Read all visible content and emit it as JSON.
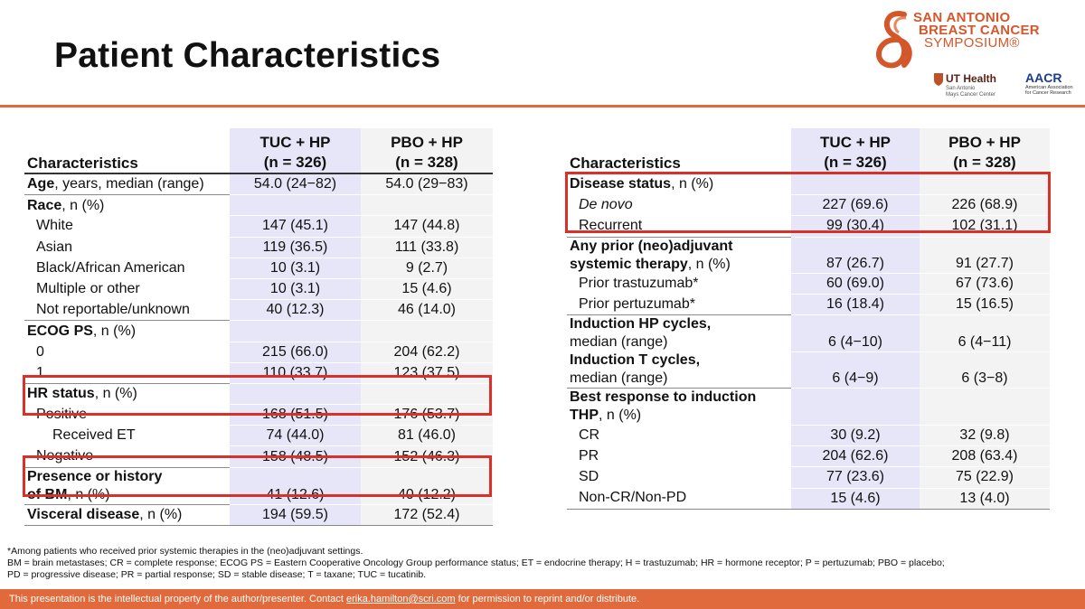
{
  "slide": {
    "title": "Patient Characteristics"
  },
  "logo": {
    "line1": "SAN ANTONIO",
    "line2": "BREAST CANCER",
    "line3": "SYMPOSIUM®",
    "ut_health": "UT Health",
    "ut_sub1": "San Antonio",
    "ut_sub2": "Mays Cancer Center",
    "aacr": "AACR",
    "aacr_sub": "American Association for Cancer Research",
    "color": "#d4572b"
  },
  "table_left": {
    "header": {
      "characteristics": "Characteristics",
      "tuc_arm": "TUC + HP",
      "tuc_n": "(n = 326)",
      "pbo_arm": "PBO + HP",
      "pbo_n": "(n = 328)"
    },
    "rows": [
      {
        "label_bold": "Age",
        "label_rest": ", years, median (range)",
        "tuc": "54.0 (24−82)",
        "pbo": "54.0 (29−83)"
      },
      {
        "label_bold": "Race",
        "label_rest": ", n (%)",
        "tuc": "",
        "pbo": ""
      },
      {
        "label": "White",
        "tuc": "147 (45.1)",
        "pbo": "147 (44.8)"
      },
      {
        "label": "Asian",
        "tuc": "119 (36.5)",
        "pbo": "111 (33.8)"
      },
      {
        "label": "Black/African American",
        "tuc": "10 (3.1)",
        "pbo": "9 (2.7)"
      },
      {
        "label": "Multiple or other",
        "tuc": "10 (3.1)",
        "pbo": "15 (4.6)"
      },
      {
        "label": "Not reportable/unknown",
        "tuc": "40 (12.3)",
        "pbo": "46 (14.0)"
      },
      {
        "label_bold": "ECOG PS",
        "label_rest": ", n (%)",
        "tuc": "",
        "pbo": ""
      },
      {
        "label": "0",
        "tuc": "215 (66.0)",
        "pbo": "204 (62.2)"
      },
      {
        "label": "1",
        "tuc": "110 (33.7)",
        "pbo": "123 (37.5)"
      },
      {
        "label_bold": "HR status",
        "label_rest": ", n (%)",
        "tuc": "",
        "pbo": ""
      },
      {
        "label": "Positive",
        "tuc": "168 (51.5)",
        "pbo": "176 (53.7)"
      },
      {
        "label": "Received ET",
        "tuc": "74 (44.0)",
        "pbo": "81 (46.0)"
      },
      {
        "label": "Negative",
        "tuc": "158 (48.5)",
        "pbo": "152 (46.3)"
      },
      {
        "label_bold_1": "Presence or history",
        "label_bold_2": "of BM",
        "label_rest": ", n (%)",
        "tuc": "41 (12.6)",
        "pbo": "40 (12.2)"
      },
      {
        "label_bold": "Visceral disease",
        "label_rest": ", n (%)",
        "tuc": "194 (59.5)",
        "pbo": "172 (52.4)"
      }
    ]
  },
  "table_right": {
    "header": {
      "characteristics": "Characteristics",
      "tuc_arm": "TUC + HP",
      "tuc_n": "(n = 326)",
      "pbo_arm": "PBO + HP",
      "pbo_n": "(n = 328)"
    },
    "rows": [
      {
        "label_bold": "Disease status",
        "label_rest": ", n (%)",
        "tuc": "",
        "pbo": ""
      },
      {
        "label": "De novo",
        "tuc": "227 (69.6)",
        "pbo": "226 (68.9)"
      },
      {
        "label": "Recurrent",
        "tuc": "99 (30.4)",
        "pbo": "102 (31.1)"
      },
      {
        "label_bold_1": "Any prior (neo)adjuvant",
        "label_bold_2": "systemic therapy",
        "label_rest": ", n (%)",
        "tuc": "87 (26.7)",
        "pbo": "91 (27.7)"
      },
      {
        "label": "Prior trastuzumab*",
        "tuc": "60 (69.0)",
        "pbo": "67 (73.6)"
      },
      {
        "label": "Prior pertuzumab*",
        "tuc": "16 (18.4)",
        "pbo": "15 (16.5)"
      },
      {
        "label_bold": "Induction HP cycles,",
        "label_line2": "median (range)",
        "tuc": "6 (4−10)",
        "pbo": "6 (4−11)"
      },
      {
        "label_bold": "Induction T cycles,",
        "label_line2": "median (range)",
        "tuc": "6 (4−9)",
        "pbo": "6 (3−8)"
      },
      {
        "label_bold_1": "Best response to induction",
        "label_bold_2": "THP",
        "label_rest": ", n (%)",
        "tuc": "",
        "pbo": ""
      },
      {
        "label": "CR",
        "tuc": "30 (9.2)",
        "pbo": "32 (9.8)"
      },
      {
        "label": "PR",
        "tuc": "204 (62.6)",
        "pbo": "208 (63.4)"
      },
      {
        "label": "SD",
        "tuc": "77 (23.6)",
        "pbo": "75 (22.9)"
      },
      {
        "label": "Non-CR/Non-PD",
        "tuc": "15 (4.6)",
        "pbo": "13 (4.0)"
      }
    ]
  },
  "footnotes": {
    "line1": "*Among patients who received prior systemic therapies in the (neo)adjuvant settings.",
    "line2": "BM = brain metastases; CR = complete response; ECOG PS = Eastern Cooperative Oncology Group performance status; ET = endocrine therapy; H = trastuzumab; HR = hormone receptor; P = pertuzumab; PBO = placebo;",
    "line3": "PD = progressive disease; PR = partial response; SD = stable disease; T = taxane; TUC = tucatinib."
  },
  "footer": {
    "text_before": "This presentation is the intellectual property of the author/presenter. Contact ",
    "email": "erika.hamilton@scri.com",
    "text_after": " for permission to reprint and/or distribute.",
    "color": "#e06a3b"
  },
  "highlight_color": "#d9302a"
}
